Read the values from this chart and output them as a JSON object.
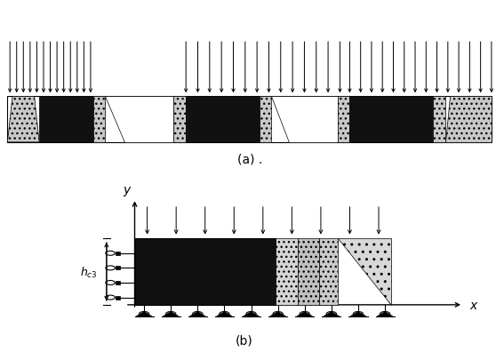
{
  "bg_color": "#ffffff",
  "fig_width": 5.67,
  "fig_height": 4.06,
  "label_a": "(a) .",
  "label_b": "(b)",
  "hc3_label": "$h_{c3}$",
  "x_label": "x",
  "y_label": "y",
  "gray_fill": "#c8c8c8",
  "black_fill": "#111111",
  "white_fill": "#ffffff",
  "dark_gray": "#a0a0a0"
}
